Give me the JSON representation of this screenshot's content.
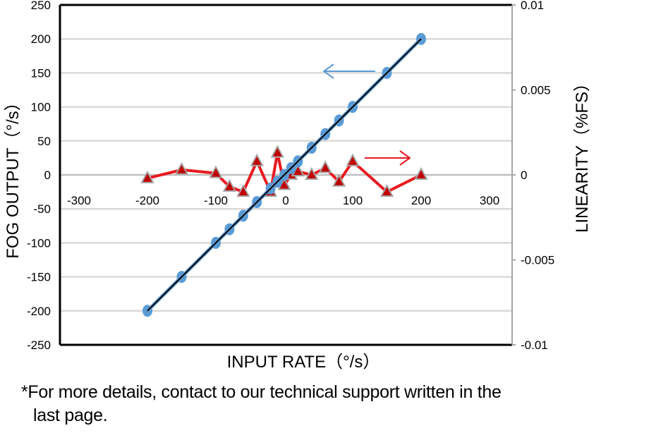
{
  "chart_data": {
    "type": "scatter",
    "title": "",
    "xlabel": "INPUT RATE（°/s）",
    "ylabel": "FOG OUTPUT（°/s）",
    "y2label": "LINEARITY（%FS）",
    "xlim": [
      -300,
      300
    ],
    "ylim": [
      -250,
      250
    ],
    "y2lim": [
      -0.01,
      0.01
    ],
    "x_ticks": [
      "-300",
      "-200",
      "-100",
      "0",
      "100",
      "200",
      "300"
    ],
    "y_ticks": [
      "250",
      "200",
      "150",
      "100",
      "50",
      "0",
      "-50",
      "-100",
      "-150",
      "-200",
      "-250"
    ],
    "y2_ticks": [
      "0.01",
      "0.005",
      "0",
      "-0.005",
      "-0.01"
    ],
    "grid": true,
    "legend": "arrows: blue arrow points to left axis (FOG OUTPUT), red arrow points to right axis (LINEARITY)",
    "series": [
      {
        "name": "FOG OUTPUT",
        "axis": "left",
        "marker": "circle",
        "color": "#5b9bd5",
        "x": [
          -200,
          -150,
          -100,
          -80,
          -60,
          -40,
          -20,
          -10,
          0,
          10,
          20,
          40,
          60,
          80,
          100,
          150,
          200
        ],
        "y": [
          -200,
          -150,
          -100,
          -80,
          -60,
          -40,
          -20,
          -10,
          0,
          10,
          20,
          40,
          60,
          80,
          100,
          150,
          200
        ]
      },
      {
        "name": "Linear fit",
        "axis": "left",
        "type": "line",
        "color": "#000000",
        "x": [
          -200,
          200
        ],
        "y": [
          -200,
          200
        ]
      },
      {
        "name": "LINEARITY",
        "axis": "right",
        "marker": "triangle",
        "color": "#e8191f",
        "x": [
          -200,
          -150,
          -100,
          -80,
          -60,
          -40,
          -20,
          -10,
          0,
          10,
          20,
          40,
          60,
          80,
          100,
          150,
          200
        ],
        "y": [
          -0.0002,
          0.0003,
          0.0001,
          -0.0007,
          -0.001,
          0.0008,
          -0.001,
          0.0013,
          -0.0006,
          0.0,
          0.0002,
          0.0,
          0.0004,
          -0.0004,
          0.0008,
          -0.001,
          0.0
        ]
      }
    ]
  },
  "footnote": {
    "line1": "*For more details, contact to our technical support written in the",
    "line2": "last page."
  }
}
